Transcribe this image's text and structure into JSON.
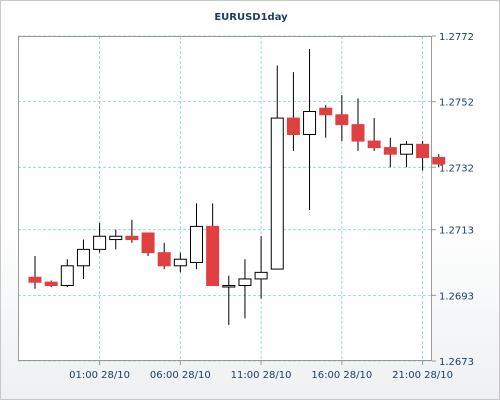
{
  "chart_data": {
    "type": "candlestick",
    "title": "EURUSD1day",
    "xlabel": "",
    "ylabel": "",
    "ylim": [
      1.2673,
      1.2772
    ],
    "y_ticks": [
      "1.2772",
      "1.2752",
      "1.2732",
      "1.2713",
      "1.2693",
      "1.2673"
    ],
    "x_ticks": [
      {
        "label": "01:00 28/10",
        "index": 4
      },
      {
        "label": "06:00 28/10",
        "index": 9
      },
      {
        "label": "11:00 28/10",
        "index": 14
      },
      {
        "label": "16:00 28/10",
        "index": 19
      },
      {
        "label": "21:00 28/10",
        "index": 24
      }
    ],
    "grid": true,
    "colors": {
      "up": "#ffffff",
      "down": "#e04040",
      "wick": "#000000",
      "grid": "#8fd0d0",
      "border": "#9a9a9a",
      "text": "#1c3e66"
    },
    "candles": [
      {
        "open": 1.26985,
        "high": 1.2705,
        "low": 1.2695,
        "close": 1.2697
      },
      {
        "open": 1.2697,
        "high": 1.26975,
        "low": 1.26955,
        "close": 1.2696
      },
      {
        "open": 1.2696,
        "high": 1.2704,
        "low": 1.26955,
        "close": 1.2702
      },
      {
        "open": 1.2702,
        "high": 1.271,
        "low": 1.2698,
        "close": 1.2707
      },
      {
        "open": 1.2707,
        "high": 1.2715,
        "low": 1.2706,
        "close": 1.2711
      },
      {
        "open": 1.271,
        "high": 1.2713,
        "low": 1.2707,
        "close": 1.2711
      },
      {
        "open": 1.2711,
        "high": 1.2716,
        "low": 1.2709,
        "close": 1.271
      },
      {
        "open": 1.2712,
        "high": 1.2712,
        "low": 1.2705,
        "close": 1.2706
      },
      {
        "open": 1.2706,
        "high": 1.2709,
        "low": 1.2701,
        "close": 1.2702
      },
      {
        "open": 1.2702,
        "high": 1.2706,
        "low": 1.27,
        "close": 1.2704
      },
      {
        "open": 1.2703,
        "high": 1.2721,
        "low": 1.2701,
        "close": 1.2714
      },
      {
        "open": 1.2714,
        "high": 1.2721,
        "low": 1.2696,
        "close": 1.2696
      },
      {
        "open": 1.2696,
        "high": 1.2699,
        "low": 1.2684,
        "close": 1.2696
      },
      {
        "open": 1.2696,
        "high": 1.2704,
        "low": 1.2686,
        "close": 1.2698
      },
      {
        "open": 1.2698,
        "high": 1.2711,
        "low": 1.2692,
        "close": 1.27
      },
      {
        "open": 1.2701,
        "high": 1.2763,
        "low": 1.2701,
        "close": 1.2747
      },
      {
        "open": 1.2747,
        "high": 1.2761,
        "low": 1.2737,
        "close": 1.2742
      },
      {
        "open": 1.2742,
        "high": 1.2768,
        "low": 1.2719,
        "close": 1.2749
      },
      {
        "open": 1.275,
        "high": 1.2751,
        "low": 1.2741,
        "close": 1.2748
      },
      {
        "open": 1.2748,
        "high": 1.2754,
        "low": 1.274,
        "close": 1.2745
      },
      {
        "open": 1.2745,
        "high": 1.2753,
        "low": 1.2737,
        "close": 1.274
      },
      {
        "open": 1.274,
        "high": 1.2747,
        "low": 1.2737,
        "close": 1.2738
      },
      {
        "open": 1.2738,
        "high": 1.2741,
        "low": 1.2732,
        "close": 1.2736
      },
      {
        "open": 1.2736,
        "high": 1.274,
        "low": 1.2732,
        "close": 1.2739
      },
      {
        "open": 1.2739,
        "high": 1.274,
        "low": 1.2731,
        "close": 1.2735
      },
      {
        "open": 1.2735,
        "high": 1.2736,
        "low": 1.2732,
        "close": 1.2733
      }
    ]
  }
}
